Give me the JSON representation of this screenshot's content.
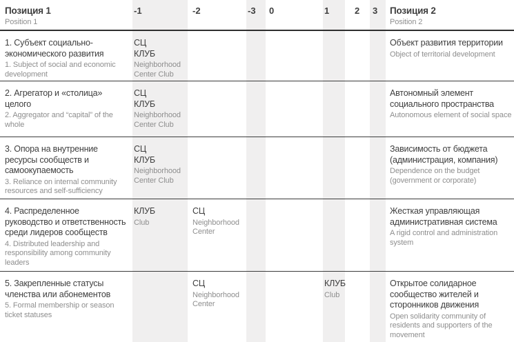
{
  "colors": {
    "text_dark": "#3e3e3e",
    "text_gray": "#8e8e8e",
    "column_stripe": "#f0efef",
    "border": "#2e2e2e"
  },
  "header": {
    "pos1": {
      "ru": "Позиция 1",
      "en": "Position 1"
    },
    "pos2": {
      "ru": "Позиция 2",
      "en": "Position 2"
    },
    "scale": [
      "-1",
      "-2",
      "-3",
      "0",
      "1",
      "2",
      "3"
    ]
  },
  "rows": [
    {
      "left": {
        "ru": "1. Субъект социально-экономического развития",
        "en": "1. Subject of social and economic development"
      },
      "marks": {
        "m1": {
          "ru": "СЦ\nКЛУБ",
          "en": "Neighborhood Center Club"
        }
      },
      "right": {
        "ru": "Объект развития территории",
        "en": "Object of territorial development"
      }
    },
    {
      "left": {
        "ru": "2. Агрегатор и «столица» целого",
        "en": "2. Aggregator and “capital” of the whole"
      },
      "marks": {
        "m1": {
          "ru": "СЦ\nКЛУБ",
          "en": "Neighborhood Center Club"
        }
      },
      "right": {
        "ru": "Автономный элемент социального пространства",
        "en": "Autonomous element of social space"
      }
    },
    {
      "left": {
        "ru": "3. Опора на внутренние ресурсы сообществ и самоокупаемость",
        "en": "3. Reliance on internal community resources and self-sufficiency"
      },
      "marks": {
        "m1": {
          "ru": "СЦ\nКЛУБ",
          "en": "Neighborhood Center Club"
        }
      },
      "right": {
        "ru": "Зависимость от бюджета (администрация, компания)",
        "en": "Dependence on the budget (government or corporate)"
      }
    },
    {
      "left": {
        "ru": "4. Распределенное руководство и ответственность среди лидеров сообществ",
        "en": "4. Distributed leadership and responsibility among community leaders"
      },
      "marks": {
        "m1": {
          "ru": "КЛУБ",
          "en": "Club"
        },
        "m2": {
          "ru": "СЦ",
          "en": "Neighborhood Center"
        }
      },
      "right": {
        "ru": "Жесткая управляющая административная система",
        "en": "A rigid control and administration system"
      }
    },
    {
      "left": {
        "ru": "5. Закрепленные статусы членства или абонементов",
        "en": "5. Formal membership or season ticket statuses"
      },
      "marks": {
        "m2": {
          "ru": "СЦ",
          "en": "Neighborhood Center"
        },
        "p1": {
          "ru": "КЛУБ",
          "en": "Club"
        }
      },
      "right": {
        "ru": "Открытое солидарное сообщество жителей и сторонников движения",
        "en": "Open solidarity community of residents and supporters of the movement"
      }
    }
  ]
}
